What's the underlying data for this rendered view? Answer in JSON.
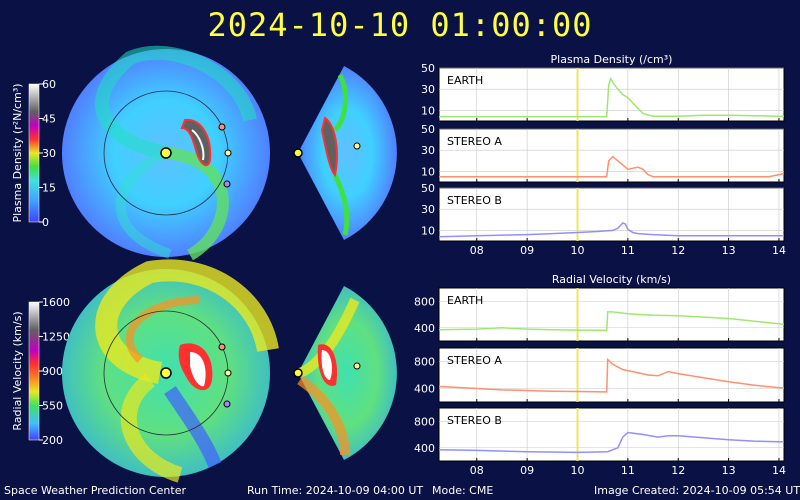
{
  "title": "2024-10-10 01:00:00",
  "footer": {
    "org": "Space Weather Prediction Center",
    "run_time": "Run Time: 2024-10-09 04:00 UT",
    "mode": "Mode: CME",
    "created": "Image Created: 2024-10-09 05:54 UT"
  },
  "colors": {
    "earth": "#9fe870",
    "stereo_a": "#ff9070",
    "stereo_b": "#9090ff",
    "now_line": "#e8e860",
    "background": "#0a1145"
  },
  "colorbars": [
    {
      "label": "Plasma Density (r²N/cm³)",
      "ticks": [
        "60",
        "45",
        "30",
        "15",
        "0"
      ]
    },
    {
      "label": "Radial Velocity (km/s)",
      "ticks": [
        "1600",
        "1250",
        "900",
        "550",
        "200"
      ]
    }
  ],
  "chart_data": [
    {
      "type": "line",
      "title": "Plasma Density (/cm³)",
      "x_ticks": [
        "08",
        "09",
        "10",
        "11",
        "12",
        "13",
        "14"
      ],
      "xlim": [
        7.25,
        14.1
      ],
      "current_time": 10.0,
      "panels": [
        {
          "name": "EARTH",
          "ylim": [
            0,
            50
          ],
          "yticks": [
            "50",
            "30",
            "10"
          ],
          "x": [
            7.25,
            8,
            9,
            10,
            10.5,
            10.58,
            10.62,
            10.66,
            10.72,
            10.8,
            10.9,
            11.0,
            11.1,
            11.2,
            11.3,
            11.5,
            12,
            12.5,
            13,
            13.5,
            14,
            14.1
          ],
          "y": [
            4,
            4,
            4,
            4,
            4,
            4,
            34,
            40,
            35,
            30,
            25,
            22,
            17,
            12,
            7,
            4.5,
            4.5,
            5.5,
            5.5,
            5,
            4.5,
            4.5
          ]
        },
        {
          "name": "STEREO A",
          "ylim": [
            0,
            50
          ],
          "yticks": [
            "50",
            "30",
            "10"
          ],
          "x": [
            7.25,
            8,
            9,
            10,
            10.58,
            10.62,
            10.7,
            10.8,
            10.9,
            11.0,
            11.1,
            11.2,
            11.3,
            11.4,
            11.5,
            11.6,
            12,
            12.5,
            13,
            13.5,
            13.8,
            14,
            14.1
          ],
          "y": [
            5,
            5,
            5,
            5,
            5,
            20,
            24,
            20,
            16,
            12,
            13,
            14,
            12,
            7,
            5,
            5,
            5,
            5,
            5,
            5,
            5,
            7,
            8
          ]
        },
        {
          "name": "STEREO B",
          "ylim": [
            0,
            50
          ],
          "yticks": [
            "50",
            "30",
            "10"
          ],
          "x": [
            7.25,
            8,
            9,
            9.5,
            10,
            10.4,
            10.7,
            10.8,
            10.9,
            10.95,
            11.0,
            11.1,
            11.2,
            11.5,
            12,
            12.5,
            13,
            14.1
          ],
          "y": [
            4,
            5,
            6,
            7,
            8,
            9,
            10,
            12,
            17,
            16,
            11,
            8,
            7,
            6,
            5,
            5,
            5,
            5
          ]
        }
      ]
    },
    {
      "type": "line",
      "title": "Radial Velocity (km/s)",
      "x_ticks": [
        "08",
        "09",
        "10",
        "11",
        "12",
        "13",
        "14"
      ],
      "xlim": [
        7.25,
        14.1
      ],
      "current_time": 10.0,
      "panels": [
        {
          "name": "EARTH",
          "ylim": [
            200,
            1000
          ],
          "yticks": [
            "800",
            "400"
          ],
          "x": [
            7.25,
            8,
            8.5,
            9,
            9.5,
            10,
            10.5,
            10.58,
            10.6,
            10.7,
            11,
            11.5,
            12,
            12.5,
            13,
            13.5,
            14,
            14.1
          ],
          "y": [
            370,
            380,
            400,
            380,
            370,
            365,
            362,
            360,
            640,
            640,
            610,
            590,
            580,
            560,
            540,
            500,
            460,
            450
          ]
        },
        {
          "name": "STEREO A",
          "ylim": [
            200,
            1000
          ],
          "yticks": [
            "800",
            "400"
          ],
          "x": [
            7.25,
            7.5,
            8,
            8.5,
            9,
            9.5,
            10,
            10.5,
            10.58,
            10.6,
            10.7,
            10.9,
            11.1,
            11.4,
            11.6,
            11.8,
            12,
            12.5,
            13,
            13.5,
            14,
            14.1
          ],
          "y": [
            430,
            420,
            400,
            380,
            370,
            360,
            355,
            350,
            350,
            830,
            760,
            680,
            650,
            600,
            590,
            650,
            620,
            560,
            500,
            450,
            410,
            410
          ]
        },
        {
          "name": "STEREO B",
          "ylim": [
            200,
            1000
          ],
          "yticks": [
            "800",
            "400"
          ],
          "x": [
            7.25,
            8,
            9,
            10,
            10.6,
            10.8,
            10.9,
            11.0,
            11.3,
            11.6,
            11.8,
            12,
            12.5,
            13,
            13.5,
            14,
            14.1
          ],
          "y": [
            370,
            360,
            340,
            330,
            340,
            400,
            560,
            630,
            600,
            560,
            580,
            580,
            550,
            520,
            500,
            490,
            490
          ]
        }
      ]
    }
  ]
}
